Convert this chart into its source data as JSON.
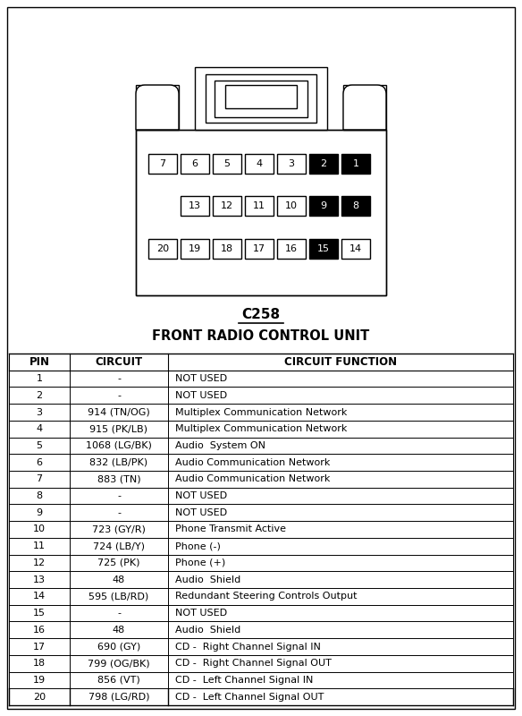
{
  "title": "C258",
  "subtitle": "FRONT RADIO CONTROL UNIT",
  "col_headers": [
    "PIN",
    "CIRCUIT",
    "CIRCUIT FUNCTION"
  ],
  "rows": [
    [
      "1",
      "-",
      "NOT USED"
    ],
    [
      "2",
      "-",
      "NOT USED"
    ],
    [
      "3",
      "914 (TN/OG)",
      "Multiplex Communication Network"
    ],
    [
      "4",
      "915 (PK/LB)",
      "Multiplex Communication Network"
    ],
    [
      "5",
      "1068 (LG/BK)",
      "Audio  System ON"
    ],
    [
      "6",
      "832 (LB/PK)",
      "Audio Communication Network"
    ],
    [
      "7",
      "883 (TN)",
      "Audio Communication Network"
    ],
    [
      "8",
      "-",
      "NOT USED"
    ],
    [
      "9",
      "-",
      "NOT USED"
    ],
    [
      "10",
      "723 (GY/R)",
      "Phone Transmit Active"
    ],
    [
      "11",
      "724 (LB/Y)",
      "Phone (-)"
    ],
    [
      "12",
      "725 (PK)",
      "Phone (+)"
    ],
    [
      "13",
      "48",
      "Audio  Shield"
    ],
    [
      "14",
      "595 (LB/RD)",
      "Redundant Steering Controls Output"
    ],
    [
      "15",
      "-",
      "NOT USED"
    ],
    [
      "16",
      "48",
      "Audio  Shield"
    ],
    [
      "17",
      "690 (GY)",
      "CD -  Right Channel Signal IN"
    ],
    [
      "18",
      "799 (OG/BK)",
      "CD -  Right Channel Signal OUT"
    ],
    [
      "19",
      "856 (VT)",
      "CD -  Left Channel Signal IN"
    ],
    [
      "20",
      "798 (LG/RD)",
      "CD -  Left Channel Signal OUT"
    ]
  ],
  "bg_color": "#ffffff",
  "border_color": "#000000",
  "row1_pins": [
    7,
    6,
    5,
    4,
    3,
    2,
    1
  ],
  "row1_black": [
    2,
    1
  ],
  "row2_pins": [
    13,
    12,
    11,
    10,
    9,
    8
  ],
  "row2_black": [
    9,
    8
  ],
  "row3_pins": [
    20,
    19,
    18,
    17,
    16,
    15,
    14
  ],
  "row3_black": [
    15
  ]
}
